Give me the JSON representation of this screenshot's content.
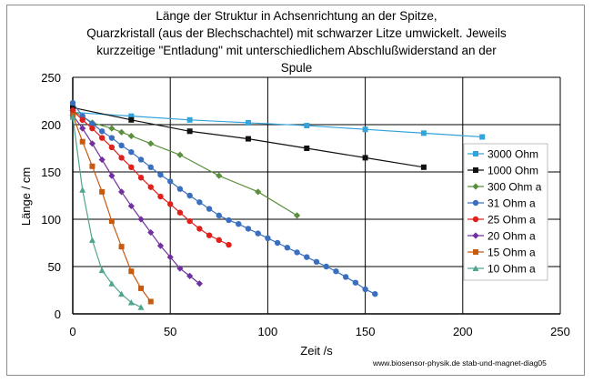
{
  "chart_data": {
    "type": "line",
    "title_lines": [
      "Länge der Struktur in Achsenrichtung an der Spitze,",
      "Quarzkristall (aus der Blechschachtel) mit schwarzer Litze umwickelt. Jeweils",
      "kurzzeitige \"Entladung\" mit  unterschiedlichem Abschlußwiderstand an der",
      "Spule"
    ],
    "xlabel": "Zeit /s",
    "ylabel": "Länge / cm",
    "xlim": [
      0,
      250
    ],
    "ylim": [
      0,
      250
    ],
    "x_ticks": [
      "0",
      "50",
      "100",
      "150",
      "200",
      "250"
    ],
    "y_ticks": [
      "0",
      "50",
      "100",
      "150",
      "200",
      "250"
    ],
    "grid": true,
    "legend_position": "right",
    "footer": "www.biosensor-physik.de  stab-und-magnet-diag05",
    "series": [
      {
        "name": "3000 Ohm",
        "color": "#33a3dc",
        "marker": "square",
        "x": [
          0,
          30,
          60,
          90,
          120,
          150,
          180,
          210
        ],
        "y": [
          213,
          209,
          205,
          202,
          199,
          195,
          191,
          187
        ]
      },
      {
        "name": "1000 Ohm",
        "color": "#111111",
        "marker": "square",
        "x": [
          0,
          30,
          60,
          90,
          120,
          150,
          180
        ],
        "y": [
          218,
          205,
          193,
          185,
          175,
          165,
          155
        ]
      },
      {
        "name": "300 Ohm a",
        "color": "#5b8f3e",
        "marker": "diamond",
        "x": [
          0,
          10,
          20,
          25,
          30,
          40,
          55,
          75,
          95,
          115
        ],
        "y": [
          215,
          202,
          196,
          192,
          188,
          180,
          168,
          146,
          129,
          104
        ]
      },
      {
        "name": "31 Ohm a",
        "color": "#3a6fc0",
        "marker": "circle",
        "x": [
          0,
          5,
          10,
          15,
          20,
          25,
          30,
          35,
          40,
          45,
          50,
          55,
          60,
          65,
          70,
          75,
          80,
          85,
          90,
          95,
          100,
          105,
          110,
          115,
          120,
          125,
          130,
          135,
          140,
          145,
          150,
          155
        ],
        "y": [
          223,
          209,
          201,
          193,
          186,
          178,
          171,
          163,
          155,
          147,
          140,
          132,
          125,
          118,
          111,
          104,
          99,
          95,
          90,
          85,
          80,
          75,
          70,
          65,
          60,
          55,
          50,
          45,
          39,
          33,
          26,
          21
        ]
      },
      {
        "name": "25 Ohm a",
        "color": "#e0201b",
        "marker": "circle",
        "x": [
          0,
          5,
          10,
          15,
          20,
          25,
          30,
          35,
          40,
          45,
          50,
          55,
          60,
          65,
          70,
          75,
          80
        ],
        "y": [
          215,
          205,
          196,
          186,
          176,
          165,
          155,
          144,
          134,
          124,
          116,
          107,
          98,
          90,
          83,
          78,
          73
        ]
      },
      {
        "name": "20 Ohm a",
        "color": "#7030a0",
        "marker": "diamond",
        "x": [
          0,
          5,
          10,
          15,
          20,
          25,
          30,
          35,
          40,
          45,
          50,
          55,
          60,
          65
        ],
        "y": [
          210,
          196,
          180,
          163,
          146,
          129,
          114,
          100,
          86,
          72,
          60,
          48,
          40,
          32
        ]
      },
      {
        "name": "15 Ohm a",
        "color": "#c55a11",
        "marker": "square",
        "x": [
          0,
          5,
          10,
          15,
          20,
          25,
          30,
          35,
          40
        ],
        "y": [
          210,
          182,
          156,
          129,
          98,
          71,
          45,
          27,
          13
        ]
      },
      {
        "name": "10 Ohm a",
        "color": "#4fa58f",
        "marker": "triangle",
        "x": [
          0,
          5,
          10,
          15,
          20,
          25,
          30,
          35
        ],
        "y": [
          208,
          131,
          78,
          46,
          32,
          21,
          12,
          7
        ]
      }
    ]
  }
}
